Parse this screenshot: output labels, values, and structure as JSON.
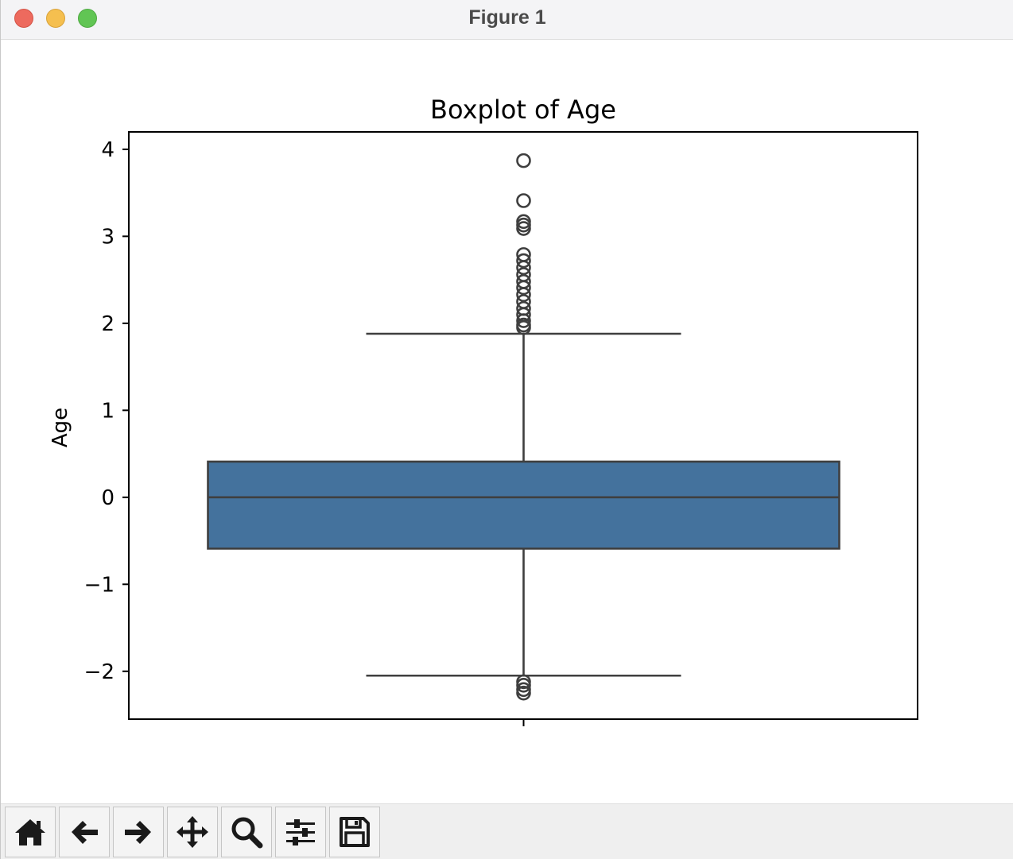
{
  "window": {
    "title": "Figure 1",
    "buttons": [
      "close",
      "minimize",
      "zoom"
    ]
  },
  "toolbar": {
    "buttons": [
      {
        "name": "home-icon",
        "tooltip": "Reset original view"
      },
      {
        "name": "back-arrow-icon",
        "tooltip": "Back to previous view"
      },
      {
        "name": "forward-arrow-icon",
        "tooltip": "Forward to next view"
      },
      {
        "name": "pan-move-icon",
        "tooltip": "Pan axes"
      },
      {
        "name": "zoom-magnifier-icon",
        "tooltip": "Zoom to rectangle"
      },
      {
        "name": "configure-sliders-icon",
        "tooltip": "Configure subplots"
      },
      {
        "name": "save-floppy-icon",
        "tooltip": "Save the figure"
      }
    ]
  },
  "chart_data": {
    "type": "box",
    "title": "Boxplot of Age",
    "xlabel": "",
    "ylabel": "Age",
    "ylim": [
      -2.55,
      4.2
    ],
    "yticks": [
      -2,
      -1,
      0,
      1,
      2,
      3,
      4
    ],
    "ytick_labels": [
      "−2",
      "−1",
      "0",
      "1",
      "2",
      "3",
      "4"
    ],
    "xticks": [
      ""
    ],
    "grid": false,
    "box_color": "#44729d",
    "edge_color": "#3f3f3f",
    "box": {
      "whisker_low": -2.05,
      "q1": -0.59,
      "median": 0.0,
      "q3": 0.41,
      "whisker_high": 1.88
    },
    "outliers": [
      3.87,
      3.41,
      3.17,
      3.13,
      3.09,
      2.79,
      2.72,
      2.64,
      2.56,
      2.48,
      2.41,
      2.33,
      2.25,
      2.17,
      2.1,
      2.03,
      1.98,
      1.95,
      -2.12,
      -2.16,
      -2.21,
      -2.25
    ]
  }
}
